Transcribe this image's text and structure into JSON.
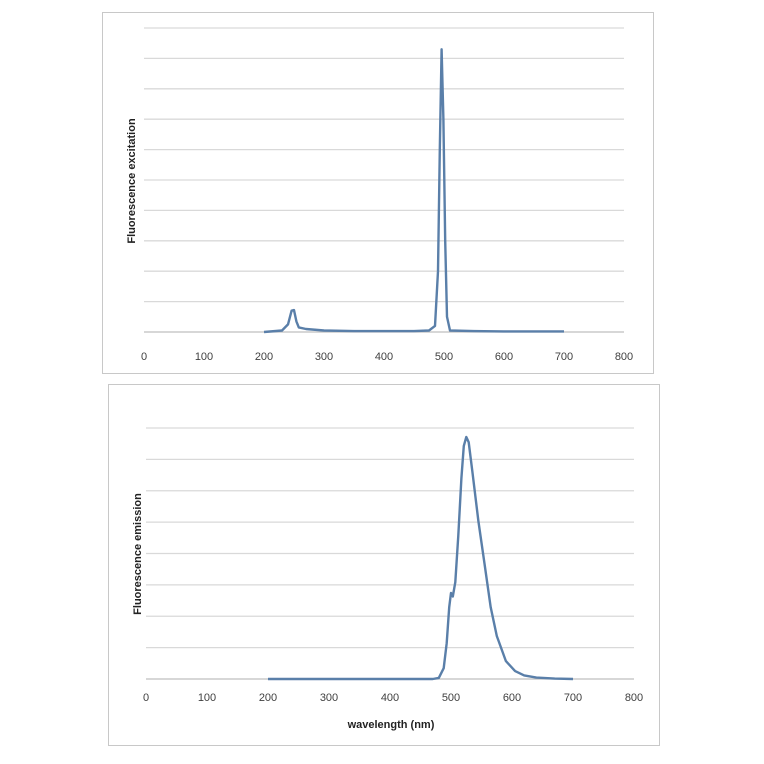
{
  "colors": {
    "line": "#5a7fa9",
    "grid": "#d9d9d9"
  },
  "chart_data": [
    {
      "type": "line",
      "title": "",
      "xlabel": "",
      "ylabel": "Fluorescence excitation",
      "xlim": [
        0,
        800
      ],
      "ylim": [
        0,
        10
      ],
      "grid": true,
      "x_ticks": [
        "0",
        "100",
        "200",
        "300",
        "400",
        "500",
        "600",
        "700",
        "800"
      ],
      "series": [
        {
          "points": [
            [
              200,
              0
            ],
            [
              230,
              0.05
            ],
            [
              240,
              0.25
            ],
            [
              246,
              0.7
            ],
            [
              250,
              0.72
            ],
            [
              254,
              0.35
            ],
            [
              258,
              0.15
            ],
            [
              270,
              0.1
            ],
            [
              300,
              0.05
            ],
            [
              350,
              0.03
            ],
            [
              400,
              0.03
            ],
            [
              450,
              0.03
            ],
            [
              475,
              0.05
            ],
            [
              485,
              0.2
            ],
            [
              490,
              2
            ],
            [
              493,
              6
            ],
            [
              496,
              9.3
            ],
            [
              499,
              7
            ],
            [
              502,
              3
            ],
            [
              505,
              0.5
            ],
            [
              510,
              0.05
            ],
            [
              550,
              0.03
            ],
            [
              600,
              0.02
            ],
            [
              650,
              0.02
            ],
            [
              700,
              0.02
            ]
          ]
        }
      ]
    },
    {
      "type": "line",
      "title": "",
      "xlabel": "wavelength (nm)",
      "ylabel": "Fluorescence emission",
      "xlim": [
        0,
        800
      ],
      "ylim": [
        0,
        7
      ],
      "grid": true,
      "x_ticks": [
        "0",
        "100",
        "200",
        "300",
        "400",
        "500",
        "600",
        "700",
        "800"
      ],
      "series": [
        {
          "points": [
            [
              200,
              0
            ],
            [
              300,
              0
            ],
            [
              400,
              0
            ],
            [
              470,
              0
            ],
            [
              480,
              0.03
            ],
            [
              488,
              0.3
            ],
            [
              493,
              1
            ],
            [
              497,
              2
            ],
            [
              500,
              2.4
            ],
            [
              503,
              2.3
            ],
            [
              507,
              2.7
            ],
            [
              512,
              4
            ],
            [
              517,
              5.6
            ],
            [
              521,
              6.5
            ],
            [
              525,
              6.75
            ],
            [
              529,
              6.6
            ],
            [
              535,
              5.8
            ],
            [
              545,
              4.4
            ],
            [
              555,
              3.2
            ],
            [
              565,
              2.0
            ],
            [
              575,
              1.2
            ],
            [
              590,
              0.5
            ],
            [
              605,
              0.22
            ],
            [
              620,
              0.1
            ],
            [
              640,
              0.04
            ],
            [
              670,
              0.01
            ],
            [
              700,
              0
            ]
          ]
        }
      ]
    }
  ]
}
